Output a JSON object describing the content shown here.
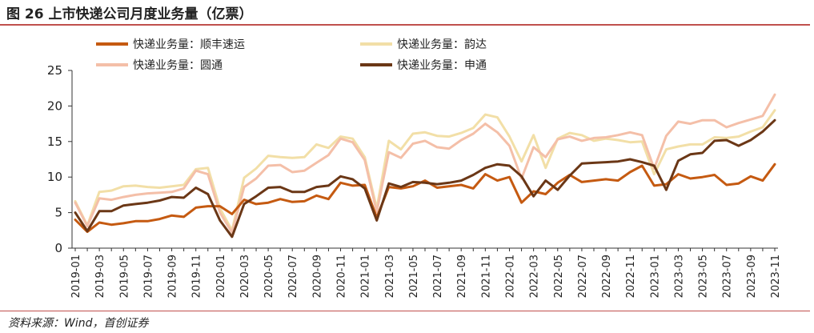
{
  "figure": {
    "title": "图 26  上市快递公司月度业务量（亿票）",
    "source": "资料来源：Wind，首创证券"
  },
  "chart_data": {
    "type": "line",
    "title": "图 26  上市快递公司月度业务量（亿票）",
    "xlabel": "",
    "ylabel": "",
    "ylim": [
      0,
      25
    ],
    "yticks": [
      0,
      5,
      10,
      15,
      20,
      25
    ],
    "grid": false,
    "legend_position": "top",
    "x": [
      "2019-01",
      "2019-02",
      "2019-03",
      "2019-04",
      "2019-05",
      "2019-06",
      "2019-07",
      "2019-08",
      "2019-09",
      "2019-10",
      "2019-11",
      "2019-12",
      "2020-01",
      "2020-02",
      "2020-03",
      "2020-04",
      "2020-05",
      "2020-06",
      "2020-07",
      "2020-08",
      "2020-09",
      "2020-10",
      "2020-11",
      "2020-12",
      "2021-01",
      "2021-02",
      "2021-03",
      "2021-04",
      "2021-05",
      "2021-06",
      "2021-07",
      "2021-08",
      "2021-09",
      "2021-10",
      "2021-11",
      "2021-12",
      "2022-01",
      "2022-02",
      "2022-03",
      "2022-04",
      "2022-05",
      "2022-06",
      "2022-07",
      "2022-08",
      "2022-09",
      "2022-10",
      "2022-11",
      "2022-12",
      "2023-01",
      "2023-02",
      "2023-03",
      "2023-04",
      "2023-05",
      "2023-06",
      "2023-07",
      "2023-08",
      "2023-09",
      "2023-10",
      "2023-11"
    ],
    "xtick_labels": [
      "2019-01",
      "2019-03",
      "2019-05",
      "2019-07",
      "2019-09",
      "2019-11",
      "2020-01",
      "2020-03",
      "2020-05",
      "2020-07",
      "2020-09",
      "2020-11",
      "2021-01",
      "2021-03",
      "2021-05",
      "2021-07",
      "2021-09",
      "2021-11",
      "2022-01",
      "2022-03",
      "2022-05",
      "2022-07",
      "2022-09",
      "2022-11",
      "2023-01",
      "2023-03",
      "2023-05",
      "2023-07",
      "2023-09",
      "2023-11"
    ],
    "series": [
      {
        "name": "快递业务量：顺丰速运",
        "color": "#c55a11",
        "values": [
          4.0,
          2.3,
          3.6,
          3.3,
          3.5,
          3.8,
          3.8,
          4.1,
          4.6,
          4.4,
          5.7,
          5.9,
          5.9,
          4.8,
          6.8,
          6.2,
          6.4,
          6.9,
          6.5,
          6.6,
          7.4,
          6.9,
          9.2,
          8.8,
          8.9,
          4.3,
          8.6,
          8.4,
          8.7,
          9.5,
          8.5,
          8.7,
          8.9,
          8.4,
          10.4,
          9.5,
          10.0,
          6.4,
          8.0,
          7.6,
          9.2,
          10.3,
          9.3,
          9.5,
          9.7,
          9.5,
          10.7,
          11.6,
          8.8,
          9.0,
          10.4,
          9.8,
          10.0,
          10.3,
          8.9,
          9.1,
          10.1,
          9.5,
          11.8
        ]
      },
      {
        "name": "快递业务量：韵达",
        "color": "#f2dfa7",
        "values": [
          6.6,
          3.2,
          7.9,
          8.1,
          8.7,
          8.8,
          8.6,
          8.5,
          8.7,
          8.9,
          11.1,
          11.3,
          5.6,
          2.5,
          9.9,
          11.2,
          13.0,
          12.8,
          12.7,
          12.8,
          14.6,
          14.1,
          15.7,
          15.4,
          12.8,
          5.6,
          15.1,
          13.9,
          16.1,
          16.3,
          15.8,
          15.7,
          16.2,
          16.9,
          18.8,
          18.4,
          15.7,
          12.2,
          15.9,
          11.3,
          15.4,
          16.2,
          15.9,
          15.1,
          15.4,
          15.2,
          14.9,
          15.0,
          10.4,
          13.9,
          14.3,
          14.6,
          14.6,
          15.6,
          15.5,
          15.7,
          16.4,
          17.0,
          19.4
        ]
      },
      {
        "name": "快递业务量：圆通",
        "color": "#f4bfa8",
        "values": [
          6.4,
          3.1,
          7.0,
          6.8,
          7.2,
          7.5,
          7.7,
          7.8,
          7.9,
          8.4,
          10.9,
          10.4,
          5.0,
          2.2,
          8.6,
          9.8,
          11.6,
          11.7,
          10.7,
          10.9,
          12.0,
          13.1,
          15.4,
          14.9,
          12.4,
          5.1,
          13.5,
          12.7,
          14.7,
          15.1,
          14.2,
          14.0,
          15.2,
          16.1,
          17.5,
          16.3,
          14.4,
          9.8,
          14.2,
          12.8,
          15.3,
          15.7,
          15.1,
          15.5,
          15.6,
          15.9,
          16.3,
          15.9,
          11.2,
          15.8,
          17.8,
          17.5,
          18.0,
          18.0,
          17.0,
          17.6,
          18.1,
          18.6,
          21.6
        ]
      },
      {
        "name": "快递业务量：申通",
        "color": "#6b3716",
        "values": [
          5.0,
          2.4,
          5.2,
          5.2,
          6.0,
          6.2,
          6.4,
          6.7,
          7.2,
          7.1,
          8.5,
          7.6,
          3.9,
          1.6,
          6.2,
          7.3,
          8.5,
          8.6,
          7.9,
          7.9,
          8.6,
          8.8,
          10.1,
          9.7,
          8.4,
          3.9,
          9.1,
          8.6,
          9.3,
          9.2,
          9.0,
          9.2,
          9.5,
          10.3,
          11.3,
          11.8,
          11.6,
          10.1,
          7.3,
          9.5,
          8.2,
          10.2,
          11.9,
          12.0,
          12.1,
          12.2,
          12.5,
          12.1,
          11.6,
          8.2,
          12.3,
          13.2,
          13.4,
          15.1,
          15.2,
          14.4,
          15.2,
          16.4,
          18.0
        ]
      }
    ]
  }
}
